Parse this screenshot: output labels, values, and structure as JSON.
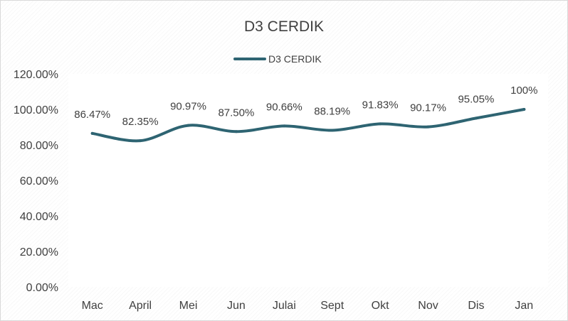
{
  "chart_data": {
    "type": "line",
    "title": "D3 CERDIK",
    "legend": {
      "position": "top",
      "entries": [
        "D3 CERDIK"
      ]
    },
    "categories": [
      "Mac",
      "April",
      "Mei",
      "Jun",
      "Julai",
      "Sept",
      "Okt",
      "Nov",
      "Dis",
      "Jan"
    ],
    "series": [
      {
        "name": "D3 CERDIK",
        "values": [
          86.47,
          82.35,
          90.97,
          87.5,
          90.66,
          88.19,
          91.83,
          90.17,
          95.05,
          100
        ],
        "labels": [
          "86.47%",
          "82.35%",
          "90.97%",
          "87.50%",
          "90.66%",
          "88.19%",
          "91.83%",
          "90.17%",
          "95.05%",
          "100%"
        ],
        "color": "#2e6472"
      }
    ],
    "ylim": [
      0,
      120
    ],
    "yticks": [
      0,
      20,
      40,
      60,
      80,
      100,
      120
    ],
    "ytick_labels": [
      "0.00%",
      "20.00%",
      "40.00%",
      "60.00%",
      "80.00%",
      "100.00%",
      "120.00%"
    ],
    "grid": false,
    "smooth": true
  }
}
